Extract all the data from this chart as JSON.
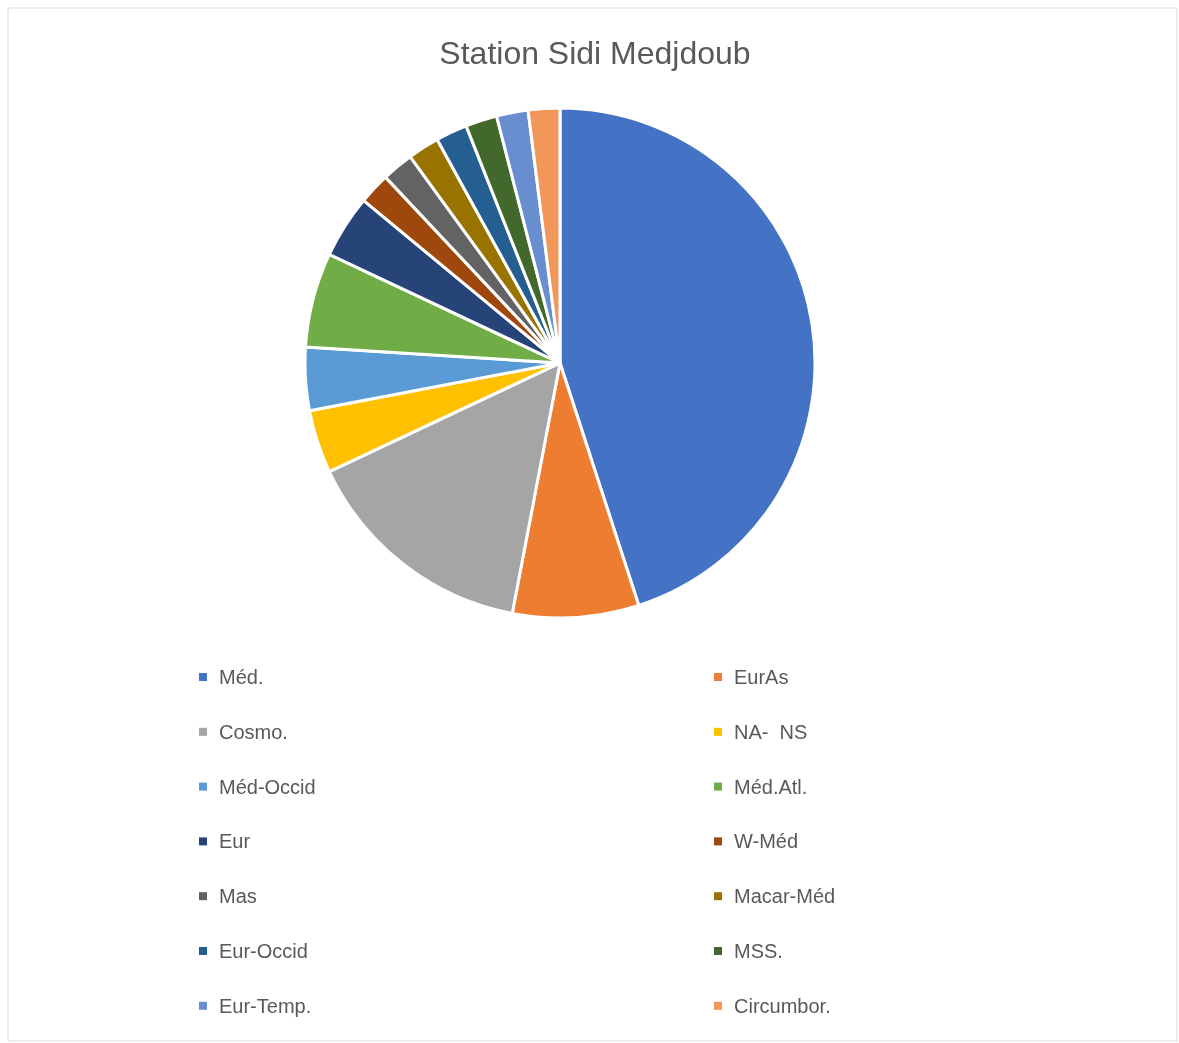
{
  "chart_data": {
    "type": "pie",
    "title": "Station Sidi Medjdoub",
    "legend": "bottom",
    "categories": [
      "Méd.",
      "EurAs",
      "Cosmo.",
      "NA-  NS",
      "Méd-Occid",
      "Méd.Atl.",
      "Eur",
      "W-Méd",
      "Mas",
      "Macar-Méd",
      "Eur-Occid",
      "MSS.",
      "Eur-Temp.",
      "Circumbor."
    ],
    "values": [
      45,
      8,
      15,
      4,
      4,
      6,
      4,
      2,
      2,
      2,
      2,
      2,
      2,
      2
    ],
    "colors": [
      "#4472c4",
      "#ed7d31",
      "#a5a5a5",
      "#ffc000",
      "#5b9bd5",
      "#70ad47",
      "#264478",
      "#9e480e",
      "#636363",
      "#997300",
      "#255e91",
      "#43682b",
      "#698ed0",
      "#f1975a"
    ]
  }
}
